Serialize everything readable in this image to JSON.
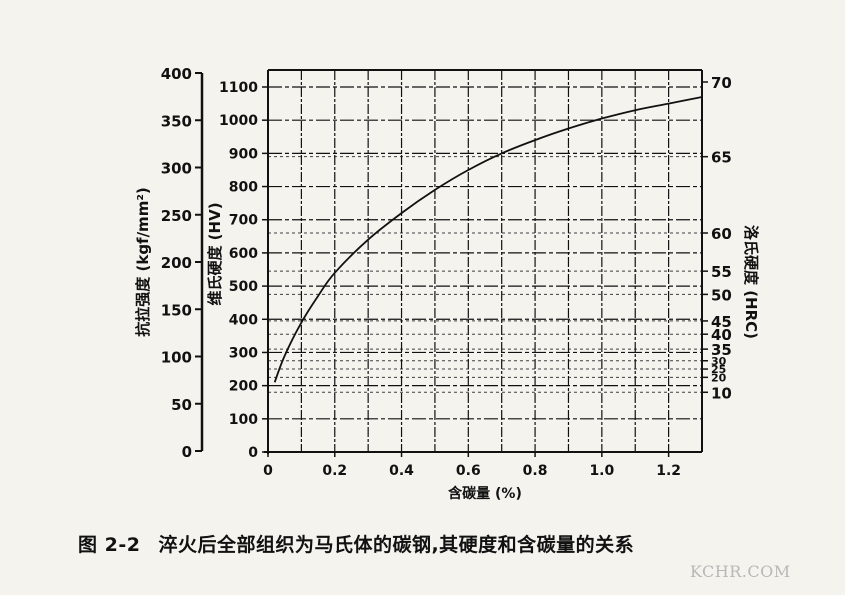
{
  "chart_data": {
    "type": "line",
    "xlabel": "含碳量 (%)",
    "x_ticks": [
      "0",
      "0.2",
      "0.4",
      "0.6",
      "0.8",
      "1.0",
      "1.2"
    ],
    "xlim": [
      0,
      1.3
    ],
    "axes": {
      "hv": {
        "label": "维氏硬度 (HV)",
        "ticks": [
          "0",
          "100",
          "200",
          "300",
          "400",
          "500",
          "600",
          "700",
          "800",
          "900",
          "1000",
          "1100"
        ],
        "range": [
          0,
          1150
        ]
      },
      "tensile": {
        "label": "抗拉强度 (kgf/mm²)",
        "ticks": [
          "0",
          "50",
          "100",
          "150",
          "200",
          "250",
          "300",
          "350",
          "400"
        ]
      },
      "hrc": {
        "label": "洛氏硬度 (HRC)",
        "ticks": [
          "10",
          "20",
          "25",
          "30",
          "35",
          "40",
          "45",
          "50",
          "55",
          "60",
          "65",
          "70"
        ],
        "tick_hv": [
          180,
          225,
          250,
          275,
          310,
          355,
          395,
          475,
          545,
          660,
          890,
          1170
        ]
      }
    },
    "series": [
      {
        "x": [
          0.02,
          0.05,
          0.1,
          0.15,
          0.2,
          0.3,
          0.4,
          0.5,
          0.6,
          0.7,
          0.8,
          0.9,
          1.0,
          1.1,
          1.2,
          1.3
        ],
        "hv": [
          210,
          290,
          390,
          470,
          540,
          640,
          720,
          790,
          850,
          900,
          940,
          975,
          1005,
          1030,
          1050,
          1070
        ]
      }
    ],
    "grid": true
  },
  "caption": {
    "number": "图 2-2",
    "text": "淬火后全部组织为马氏体的碳钢,其硬度和含碳量的关系"
  },
  "watermark": "KCHR.COM",
  "colors": {
    "ink": "#111111",
    "paper": "#f4f3ee"
  }
}
